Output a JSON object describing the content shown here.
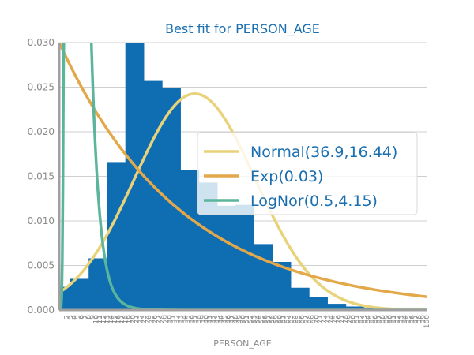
{
  "chart_data": {
    "type": "bar",
    "title": "Best fit for PERSON_AGE",
    "xlabel": "PERSON_AGE",
    "ylabel": "",
    "xlim": [
      0,
      100
    ],
    "ylim": [
      0,
      0.03
    ],
    "yticks": [
      "0.000",
      "0.005",
      "0.010",
      "0.015",
      "0.020",
      "0.025",
      "0.030"
    ],
    "grid": true,
    "legend_position": "center-right",
    "bar_color": "#0f6db2",
    "histogram": [
      {
        "x0": 0,
        "x1": 3,
        "density": 0.0026
      },
      {
        "x0": 3,
        "x1": 8,
        "density": 0.0035
      },
      {
        "x0": 8,
        "x1": 13,
        "density": 0.0058
      },
      {
        "x0": 13,
        "x1": 18,
        "density": 0.0166
      },
      {
        "x0": 18,
        "x1": 23,
        "density": 0.0305
      },
      {
        "x0": 23,
        "x1": 28,
        "density": 0.0257
      },
      {
        "x0": 28,
        "x1": 33,
        "density": 0.0249
      },
      {
        "x0": 33,
        "x1": 38,
        "density": 0.0157
      },
      {
        "x0": 38,
        "x1": 43,
        "density": 0.0143
      },
      {
        "x0": 43,
        "x1": 48,
        "density": 0.0117
      },
      {
        "x0": 48,
        "x1": 53,
        "density": 0.0118
      },
      {
        "x0": 53,
        "x1": 58,
        "density": 0.0074
      },
      {
        "x0": 58,
        "x1": 63,
        "density": 0.0054
      },
      {
        "x0": 63,
        "x1": 68,
        "density": 0.0025
      },
      {
        "x0": 68,
        "x1": 73,
        "density": 0.0015
      },
      {
        "x0": 73,
        "x1": 78,
        "density": 0.0007
      },
      {
        "x0": 78,
        "x1": 83,
        "density": 0.0004
      },
      {
        "x0": 83,
        "x1": 88,
        "density": 0.0002
      },
      {
        "x0": 88,
        "x1": 100,
        "density": 0.0001
      }
    ],
    "series": [
      {
        "name": "Normal(36.9,16.44)",
        "distribution": "normal",
        "mean": 36.9,
        "std": 16.44,
        "color": "#e8d27a"
      },
      {
        "name": "Exp(0.03)",
        "distribution": "exponential",
        "rate": 0.03,
        "color": "#e3a84a"
      },
      {
        "name": "LogNor(0.5,4.15)",
        "distribution": "lognormal",
        "sigma": 0.5,
        "scale": 4.15,
        "color": "#5bb59c"
      }
    ],
    "x_tick_labels": [
      "2",
      "3",
      "4",
      "5",
      "6",
      "7",
      "8",
      "9",
      "10",
      "11",
      "12",
      "13",
      "14",
      "15",
      "16",
      "17",
      "18",
      "19",
      "20",
      "21",
      "22",
      "23",
      "24",
      "25",
      "26",
      "27",
      "28",
      "29",
      "30",
      "31",
      "32",
      "33",
      "34",
      "35",
      "36",
      "37",
      "38",
      "39",
      "40",
      "41",
      "42",
      "43",
      "44",
      "45",
      "46",
      "47",
      "48",
      "49",
      "50",
      "51",
      "52",
      "53",
      "54",
      "55",
      "56",
      "57",
      "58",
      "59",
      "60",
      "61",
      "62",
      "63",
      "64",
      "65",
      "66",
      "67",
      "68",
      "69",
      "70",
      "71",
      "72",
      "73",
      "74",
      "75",
      "76",
      "77",
      "78",
      "79",
      "80",
      "81",
      "82",
      "83",
      "84",
      "85",
      "86",
      "87",
      "88",
      "89",
      "90",
      "91",
      "92",
      "93",
      "94",
      "95",
      "96",
      "97",
      "98",
      "99",
      "100"
    ]
  }
}
